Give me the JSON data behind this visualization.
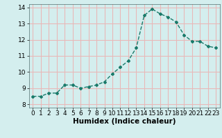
{
  "x": [
    0,
    1,
    2,
    3,
    4,
    5,
    6,
    7,
    8,
    9,
    10,
    11,
    12,
    13,
    14,
    15,
    16,
    17,
    18,
    19,
    20,
    21,
    22,
    23
  ],
  "y": [
    8.5,
    8.5,
    8.7,
    8.7,
    9.2,
    9.2,
    9.0,
    9.1,
    9.2,
    9.4,
    9.9,
    10.3,
    10.7,
    11.5,
    13.5,
    13.9,
    13.6,
    13.4,
    13.1,
    12.3,
    11.9,
    11.9,
    11.6,
    11.5
  ],
  "line_color": "#1a7a6a",
  "marker": "D",
  "marker_size": 2.0,
  "line_width": 1.0,
  "xlabel": "Humidex (Indice chaleur)",
  "xlim": [
    -0.5,
    23.5
  ],
  "ylim": [
    7.8,
    14.2
  ],
  "yticks": [
    8,
    9,
    10,
    11,
    12,
    13,
    14
  ],
  "xticks": [
    0,
    1,
    2,
    3,
    4,
    5,
    6,
    7,
    8,
    9,
    10,
    11,
    12,
    13,
    14,
    15,
    16,
    17,
    18,
    19,
    20,
    21,
    22,
    23
  ],
  "bg_color": "#d4eeee",
  "grid_color": "#e8b8b8",
  "xlabel_fontsize": 7.5,
  "tick_fontsize": 6.5
}
